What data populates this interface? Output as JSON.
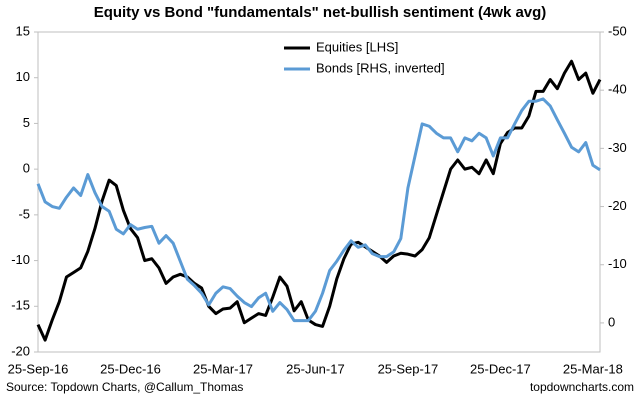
{
  "chart_data": {
    "type": "line",
    "title": "Equity vs Bond \"fundamentals\" net-bullish sentiment (4wk avg)",
    "source": "Source: Topdown Charts, @Callum_Thomas",
    "site": "topdowncharts.com",
    "categories": [
      "25-Sep-16",
      null,
      null,
      null,
      null,
      null,
      null,
      null,
      null,
      null,
      null,
      null,
      null,
      "25-Dec-16",
      null,
      null,
      null,
      null,
      null,
      null,
      null,
      null,
      null,
      null,
      null,
      null,
      "25-Mar-17",
      null,
      null,
      null,
      null,
      null,
      null,
      null,
      null,
      null,
      null,
      null,
      null,
      "25-Jun-17",
      null,
      null,
      null,
      null,
      null,
      null,
      null,
      null,
      null,
      null,
      null,
      null,
      "25-Sep-17",
      null,
      null,
      null,
      null,
      null,
      null,
      null,
      null,
      null,
      null,
      null,
      null,
      "25-Dec-17",
      null,
      null,
      null,
      null,
      null,
      null,
      null,
      null,
      null,
      null,
      null,
      null,
      "25-Mar-18",
      null
    ],
    "series": [
      {
        "name": "Equities [LHS]",
        "color": "#000000",
        "axis": "y",
        "values": [
          -17,
          -18.7,
          -16.5,
          -14.5,
          -11.8,
          -11.3,
          -10.8,
          -9,
          -6.5,
          -3.5,
          -1.2,
          -1.8,
          -4.5,
          -6.5,
          -7.5,
          -10,
          -9.8,
          -10.8,
          -12.5,
          -11.8,
          -11.5,
          -11.8,
          -12.5,
          -13,
          -15,
          -15.8,
          -15.3,
          -15.2,
          -14.5,
          -16.8,
          -16.3,
          -15.8,
          -16,
          -14,
          -11.8,
          -12.8,
          -15.5,
          -14.5,
          -16.5,
          -17,
          -17.2,
          -15,
          -12,
          -9.8,
          -8.2,
          -8,
          -8.5,
          -9,
          -9.5,
          -10.2,
          -9.5,
          -9.2,
          -9.3,
          -9.5,
          -8.8,
          -7.5,
          -5,
          -2.5,
          0,
          1,
          0,
          0.2,
          -0.5,
          1,
          -0.5,
          2.8,
          4,
          4.5,
          4.5,
          5.8,
          8.5,
          8.5,
          9.8,
          8.8,
          10.5,
          11.8,
          9.8,
          10.5,
          8.3,
          9.8
        ]
      },
      {
        "name": "Bonds [RHS, inverted]",
        "color": "#5b9bd5",
        "axis": "y2",
        "values": [
          -23.9,
          -20.8,
          -20.0,
          -19.7,
          -21.6,
          -23.2,
          -21.9,
          -25.5,
          -22.4,
          -20.0,
          -19.2,
          -16.1,
          -15.3,
          -16.9,
          -16.1,
          -16.4,
          -16.6,
          -13.7,
          -15.0,
          -13.7,
          -10.6,
          -7.5,
          -6.4,
          -5.1,
          -3.1,
          -5.1,
          -6.2,
          -5.9,
          -4.6,
          -3.5,
          -2.8,
          -4.3,
          -5.1,
          -2.0,
          -3.5,
          -2.3,
          -0.4,
          -0.4,
          -0.4,
          -2.0,
          -5.1,
          -9.0,
          -10.6,
          -12.5,
          -14.1,
          -13.0,
          -13.4,
          -11.9,
          -11.4,
          -11.4,
          -12.2,
          -14.5,
          -23.2,
          -28.7,
          -34.2,
          -33.8,
          -32.6,
          -31.8,
          -31.8,
          -29.4,
          -31.8,
          -31.3,
          -32.6,
          -31.8,
          -28.7,
          -31.8,
          -31.8,
          -34.2,
          -36.5,
          -38.1,
          -38.1,
          -38.5,
          -37.3,
          -34.9,
          -32.6,
          -30.2,
          -29.4,
          -31.0,
          -27.1,
          -26.3
        ]
      }
    ],
    "ylim": [
      -20,
      15
    ],
    "yticks": [
      -20,
      -15,
      -10,
      -5,
      0,
      5,
      10,
      15
    ],
    "y2lim": [
      5,
      -50
    ],
    "y2ticks": [
      0,
      -10,
      -20,
      -30,
      -40,
      -50
    ],
    "grid": false,
    "legend": "top"
  }
}
